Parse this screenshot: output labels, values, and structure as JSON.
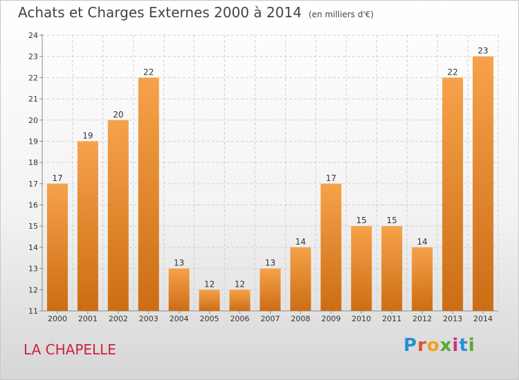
{
  "title": "Achats et Charges Externes 2000 à 2014",
  "unit": "(en milliers d'€)",
  "city": "LA CHAPELLE",
  "logo": "Proxiti",
  "colors": {
    "bar_light": "#f6a24a",
    "bar_dark": "#cc6d14",
    "grid": "#d0d0d0",
    "city": "#d02040"
  },
  "chart_data": {
    "type": "bar",
    "categories": [
      "2000",
      "2001",
      "2002",
      "2003",
      "2004",
      "2005",
      "2006",
      "2007",
      "2008",
      "2009",
      "2010",
      "2011",
      "2012",
      "2013",
      "2014"
    ],
    "values": [
      17,
      19,
      20,
      22,
      13,
      12,
      12,
      13,
      14,
      17,
      15,
      15,
      14,
      22,
      23
    ],
    "ylim": [
      11,
      24
    ],
    "yticks": [
      11,
      12,
      13,
      14,
      15,
      16,
      17,
      18,
      19,
      20,
      21,
      22,
      23,
      24
    ],
    "grid": true
  }
}
